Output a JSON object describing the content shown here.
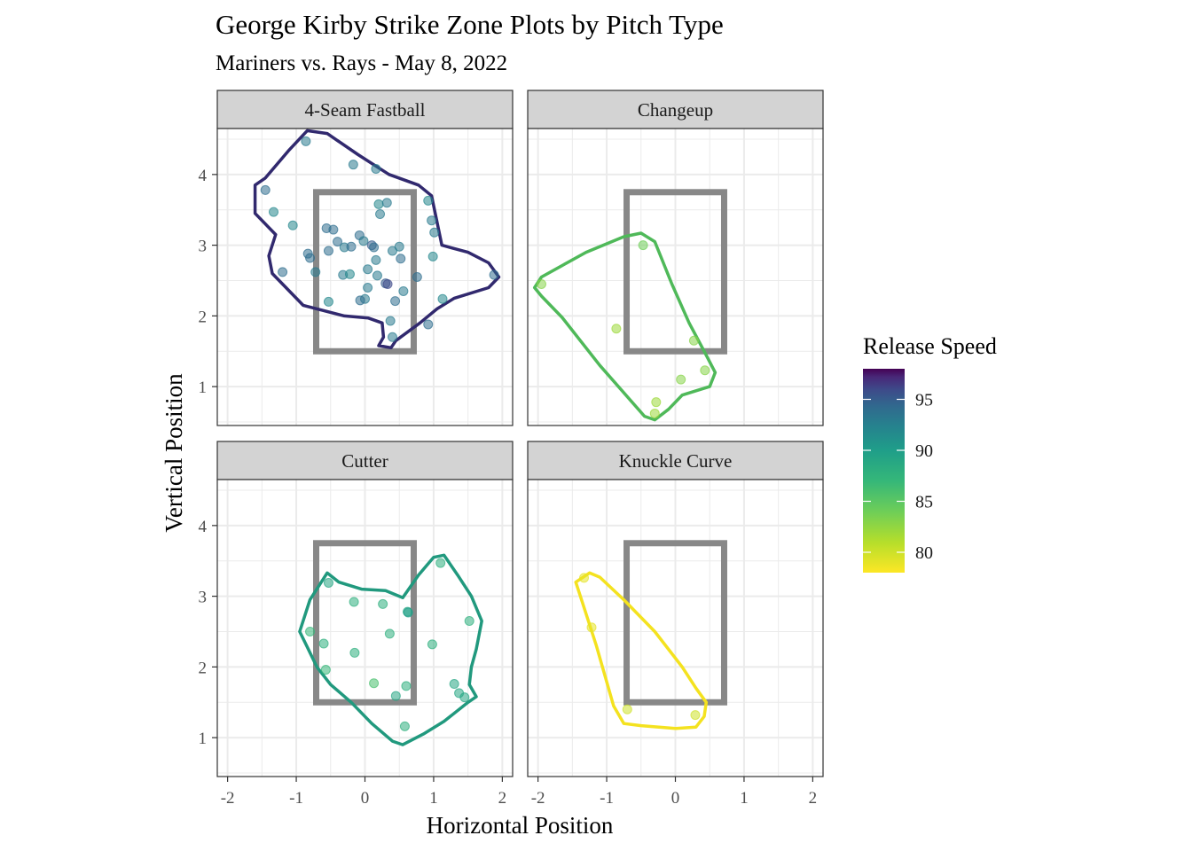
{
  "chart_data": {
    "type": "scatter",
    "title": "George Kirby Strike Zone Plots by Pitch Type",
    "subtitle": "Mariners vs. Rays - May 8, 2022",
    "xlabel": "Horizontal Position",
    "ylabel": "Vertical Position",
    "xlim": [
      -2.15,
      2.15
    ],
    "ylim": [
      0.45,
      4.65
    ],
    "x_ticks": [
      -2,
      -1,
      0,
      1,
      2
    ],
    "x_tick_labels": [
      "-2",
      "-1",
      "0",
      "1",
      "2"
    ],
    "y_ticks": [
      1,
      2,
      3,
      4
    ],
    "y_tick_labels": [
      "1",
      "2",
      "3",
      "4"
    ],
    "grid": true,
    "strike_zone": {
      "x": [
        -0.71,
        0.71
      ],
      "y": [
        1.5,
        3.75
      ],
      "color": "#888888"
    },
    "legend": {
      "title": "Release Speed",
      "position": "right",
      "range": [
        78,
        98
      ],
      "ticks": [
        80,
        85,
        90,
        95
      ],
      "tick_labels": [
        "80",
        "85",
        "90",
        "95"
      ]
    },
    "panels": [
      {
        "name": "4-Seam Fastball",
        "hull_color": "#31296e",
        "hull": [
          [
            -0.84,
            4.62
          ],
          [
            -0.55,
            4.58
          ],
          [
            -0.1,
            4.28
          ],
          [
            0.35,
            4.0
          ],
          [
            0.78,
            3.85
          ],
          [
            0.97,
            3.7
          ],
          [
            1.12,
            3.0
          ],
          [
            1.5,
            2.9
          ],
          [
            1.8,
            2.75
          ],
          [
            1.95,
            2.55
          ],
          [
            1.8,
            2.4
          ],
          [
            1.3,
            2.25
          ],
          [
            1.05,
            2.1
          ],
          [
            0.8,
            1.9
          ],
          [
            0.45,
            1.65
          ],
          [
            0.38,
            1.55
          ],
          [
            0.2,
            1.58
          ],
          [
            0.27,
            1.7
          ],
          [
            0.25,
            1.9
          ],
          [
            0.05,
            1.97
          ],
          [
            -0.3,
            2.0
          ],
          [
            -0.9,
            2.15
          ],
          [
            -1.35,
            2.6
          ],
          [
            -1.4,
            2.85
          ],
          [
            -1.3,
            3.15
          ],
          [
            -1.6,
            3.45
          ],
          [
            -1.6,
            3.85
          ],
          [
            -1.45,
            3.95
          ],
          [
            -1.1,
            4.35
          ]
        ],
        "points": [
          [
            -0.86,
            4.47,
            93
          ],
          [
            -0.17,
            4.14,
            93
          ],
          [
            0.16,
            4.08,
            93
          ],
          [
            -1.45,
            3.78,
            94
          ],
          [
            0.92,
            3.63,
            92
          ],
          [
            0.2,
            3.58,
            92
          ],
          [
            0.32,
            3.6,
            93
          ],
          [
            0.22,
            3.44,
            93
          ],
          [
            -1.33,
            3.47,
            92
          ],
          [
            0.97,
            3.35,
            93
          ],
          [
            -1.05,
            3.28,
            92
          ],
          [
            1.01,
            3.18,
            93
          ],
          [
            -0.56,
            3.24,
            94
          ],
          [
            -0.46,
            3.22,
            94
          ],
          [
            -0.08,
            3.14,
            94
          ],
          [
            -0.02,
            3.06,
            93
          ],
          [
            0.1,
            3.0,
            95
          ],
          [
            -0.4,
            3.05,
            94
          ],
          [
            -0.3,
            2.97,
            93
          ],
          [
            -0.2,
            2.98,
            94
          ],
          [
            0.13,
            2.97,
            94
          ],
          [
            0.5,
            2.98,
            93
          ],
          [
            0.4,
            2.92,
            93
          ],
          [
            -0.53,
            2.92,
            94
          ],
          [
            -0.83,
            2.88,
            94
          ],
          [
            -0.8,
            2.82,
            94
          ],
          [
            0.16,
            2.79,
            93
          ],
          [
            0.52,
            2.81,
            94
          ],
          [
            0.99,
            2.84,
            92
          ],
          [
            -0.72,
            2.62,
            93
          ],
          [
            -1.2,
            2.62,
            94
          ],
          [
            0.04,
            2.66,
            93
          ],
          [
            -0.32,
            2.58,
            93
          ],
          [
            -0.22,
            2.59,
            92
          ],
          [
            0.18,
            2.57,
            93
          ],
          [
            0.76,
            2.55,
            94
          ],
          [
            1.88,
            2.58,
            94
          ],
          [
            0.3,
            2.46,
            95
          ],
          [
            0.33,
            2.45,
            96
          ],
          [
            0.04,
            2.4,
            93
          ],
          [
            0.56,
            2.35,
            93
          ],
          [
            0.0,
            2.24,
            93
          ],
          [
            -0.07,
            2.22,
            94
          ],
          [
            0.44,
            2.21,
            94
          ],
          [
            1.13,
            2.24,
            92
          ],
          [
            -0.53,
            2.2,
            92
          ],
          [
            0.37,
            1.93,
            93
          ],
          [
            0.92,
            1.88,
            94
          ],
          [
            0.4,
            1.7,
            93
          ]
        ]
      },
      {
        "name": "Changeup",
        "hull_color": "#4fb959",
        "hull": [
          [
            -0.5,
            3.17
          ],
          [
            -0.3,
            3.05
          ],
          [
            -0.05,
            2.45
          ],
          [
            0.2,
            1.9
          ],
          [
            0.42,
            1.5
          ],
          [
            0.58,
            1.2
          ],
          [
            0.5,
            1.0
          ],
          [
            0.1,
            0.88
          ],
          [
            -0.1,
            0.68
          ],
          [
            -0.3,
            0.53
          ],
          [
            -0.45,
            0.58
          ],
          [
            -1.1,
            1.3
          ],
          [
            -1.65,
            1.98
          ],
          [
            -1.95,
            2.28
          ],
          [
            -2.05,
            2.4
          ],
          [
            -1.95,
            2.55
          ],
          [
            -1.3,
            2.9
          ],
          [
            -0.75,
            3.12
          ]
        ],
        "points": [
          [
            -0.47,
            3.0,
            84
          ],
          [
            -1.95,
            2.45,
            83
          ],
          [
            -0.86,
            1.82,
            82
          ],
          [
            0.27,
            1.65,
            83
          ],
          [
            0.43,
            1.23,
            83
          ],
          [
            0.08,
            1.1,
            83
          ],
          [
            -0.28,
            0.78,
            82
          ],
          [
            -0.3,
            0.62,
            82
          ]
        ]
      },
      {
        "name": "Cutter",
        "hull_color": "#21997e",
        "hull": [
          [
            -0.55,
            3.33
          ],
          [
            -0.38,
            3.2
          ],
          [
            -0.05,
            3.1
          ],
          [
            0.3,
            3.08
          ],
          [
            0.55,
            2.98
          ],
          [
            0.78,
            3.3
          ],
          [
            1.0,
            3.55
          ],
          [
            1.15,
            3.58
          ],
          [
            1.35,
            3.3
          ],
          [
            1.55,
            3.0
          ],
          [
            1.7,
            2.65
          ],
          [
            1.62,
            2.25
          ],
          [
            1.55,
            2.0
          ],
          [
            1.52,
            1.75
          ],
          [
            1.62,
            1.58
          ],
          [
            1.5,
            1.5
          ],
          [
            1.15,
            1.23
          ],
          [
            0.85,
            1.05
          ],
          [
            0.55,
            0.9
          ],
          [
            0.4,
            0.95
          ],
          [
            0.1,
            1.2
          ],
          [
            -0.2,
            1.5
          ],
          [
            -0.5,
            1.75
          ],
          [
            -0.7,
            2.0
          ],
          [
            -0.85,
            2.3
          ],
          [
            -0.95,
            2.5
          ],
          [
            -0.8,
            2.95
          ]
        ],
        "points": [
          [
            1.1,
            3.47,
            88
          ],
          [
            -0.53,
            3.19,
            89
          ],
          [
            -0.16,
            2.92,
            88
          ],
          [
            0.26,
            2.89,
            88
          ],
          [
            0.62,
            2.78,
            89
          ],
          [
            0.63,
            2.77,
            90
          ],
          [
            1.52,
            2.65,
            88
          ],
          [
            -0.8,
            2.5,
            87
          ],
          [
            0.36,
            2.47,
            88
          ],
          [
            -0.6,
            2.33,
            88
          ],
          [
            0.98,
            2.32,
            88
          ],
          [
            -0.15,
            2.2,
            88
          ],
          [
            -0.57,
            1.96,
            87
          ],
          [
            0.13,
            1.77,
            86
          ],
          [
            0.6,
            1.73,
            88
          ],
          [
            1.3,
            1.76,
            89
          ],
          [
            1.37,
            1.63,
            89
          ],
          [
            1.45,
            1.57,
            89
          ],
          [
            0.45,
            1.59,
            89
          ],
          [
            0.58,
            1.16,
            88
          ]
        ]
      },
      {
        "name": "Knuckle Curve",
        "hull_color": "#f4e21f",
        "hull": [
          [
            -1.25,
            3.33
          ],
          [
            -1.1,
            3.27
          ],
          [
            -0.75,
            2.95
          ],
          [
            -0.3,
            2.5
          ],
          [
            0.1,
            2.0
          ],
          [
            0.3,
            1.7
          ],
          [
            0.45,
            1.5
          ],
          [
            0.42,
            1.3
          ],
          [
            0.3,
            1.15
          ],
          [
            0.0,
            1.13
          ],
          [
            -0.5,
            1.17
          ],
          [
            -0.75,
            1.2
          ],
          [
            -0.9,
            1.45
          ],
          [
            -1.15,
            2.3
          ],
          [
            -1.35,
            2.9
          ],
          [
            -1.45,
            3.2
          ]
        ],
        "points": [
          [
            -1.33,
            3.26,
            79
          ],
          [
            -1.22,
            2.56,
            79
          ],
          [
            -0.7,
            1.4,
            80
          ],
          [
            0.29,
            1.32,
            80
          ]
        ]
      }
    ]
  }
}
